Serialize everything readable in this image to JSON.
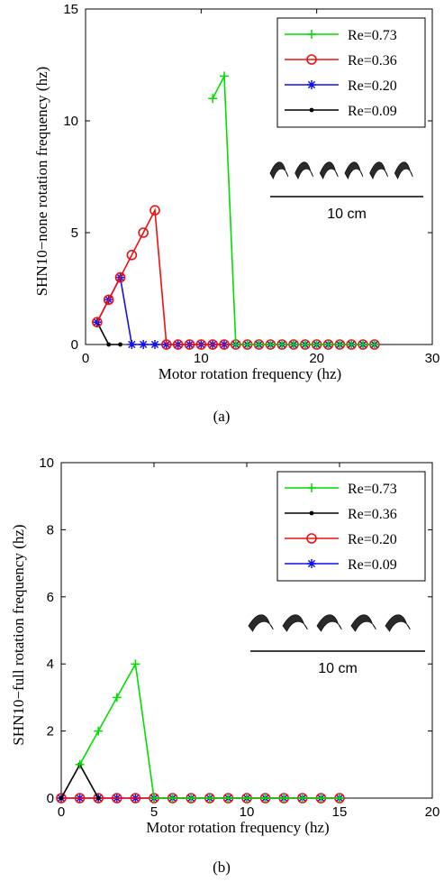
{
  "chart_data": [
    {
      "type": "line",
      "caption": "(a)",
      "xlabel": "Motor rotation frequency (hz)",
      "ylabel": "SHN10−none rotation frequency (hz)",
      "xlim": [
        0,
        30
      ],
      "ylim": [
        0,
        15
      ],
      "xticks": [
        0,
        10,
        20,
        30
      ],
      "yticks": [
        0,
        5,
        10,
        15
      ],
      "legend_position": "top-right",
      "inset_scale_label": "10 cm",
      "series": [
        {
          "name": "Re=0.73",
          "color": "#00dd00",
          "marker": "plus",
          "points": [
            [
              11,
              11
            ],
            [
              12,
              12
            ],
            [
              13,
              0
            ],
            [
              14,
              0
            ],
            [
              15,
              0
            ],
            [
              16,
              0
            ],
            [
              17,
              0
            ],
            [
              18,
              0
            ],
            [
              19,
              0
            ],
            [
              20,
              0
            ],
            [
              21,
              0
            ],
            [
              22,
              0
            ],
            [
              23,
              0
            ],
            [
              24,
              0
            ],
            [
              25,
              0
            ]
          ]
        },
        {
          "name": "Re=0.36",
          "color": "#ee1111",
          "marker": "circle",
          "points": [
            [
              1,
              1
            ],
            [
              2,
              2
            ],
            [
              3,
              3
            ],
            [
              4,
              4
            ],
            [
              5,
              5
            ],
            [
              6,
              6
            ],
            [
              7,
              0
            ],
            [
              8,
              0
            ],
            [
              9,
              0
            ],
            [
              10,
              0
            ],
            [
              11,
              0
            ],
            [
              12,
              0
            ],
            [
              13,
              0
            ],
            [
              14,
              0
            ],
            [
              15,
              0
            ],
            [
              16,
              0
            ],
            [
              17,
              0
            ],
            [
              18,
              0
            ],
            [
              19,
              0
            ],
            [
              20,
              0
            ],
            [
              21,
              0
            ],
            [
              22,
              0
            ],
            [
              23,
              0
            ],
            [
              24,
              0
            ],
            [
              25,
              0
            ]
          ]
        },
        {
          "name": "Re=0.20",
          "color": "#1111ee",
          "marker": "asterisk",
          "points": [
            [
              1,
              1
            ],
            [
              2,
              2
            ],
            [
              3,
              3
            ],
            [
              4,
              0
            ],
            [
              5,
              0
            ],
            [
              6,
              0
            ],
            [
              7,
              0
            ],
            [
              8,
              0
            ],
            [
              9,
              0
            ],
            [
              10,
              0
            ],
            [
              11,
              0
            ],
            [
              12,
              0
            ],
            [
              13,
              0
            ],
            [
              14,
              0
            ],
            [
              15,
              0
            ],
            [
              16,
              0
            ],
            [
              17,
              0
            ],
            [
              18,
              0
            ],
            [
              19,
              0
            ],
            [
              20,
              0
            ],
            [
              21,
              0
            ],
            [
              22,
              0
            ],
            [
              23,
              0
            ],
            [
              24,
              0
            ],
            [
              25,
              0
            ]
          ]
        },
        {
          "name": "Re=0.09",
          "color": "#000000",
          "marker": "dot",
          "points": [
            [
              1,
              1
            ],
            [
              2,
              0
            ],
            [
              3,
              0
            ]
          ]
        }
      ]
    },
    {
      "type": "line",
      "caption": "(b)",
      "xlabel": "Motor rotation frequency (hz)",
      "ylabel": "SHN10−full rotation frequency (hz)",
      "xlim": [
        0,
        20
      ],
      "ylim": [
        0,
        10
      ],
      "xticks": [
        0,
        5,
        10,
        15,
        20
      ],
      "yticks": [
        0,
        2,
        4,
        6,
        8,
        10
      ],
      "legend_position": "top-right",
      "inset_scale_label": "10 cm",
      "series": [
        {
          "name": "Re=0.73",
          "color": "#00dd00",
          "marker": "plus",
          "points": [
            [
              1,
              1
            ],
            [
              2,
              2
            ],
            [
              3,
              3
            ],
            [
              4,
              4
            ],
            [
              5,
              0
            ],
            [
              6,
              0
            ],
            [
              7,
              0
            ],
            [
              8,
              0
            ],
            [
              9,
              0
            ],
            [
              10,
              0
            ],
            [
              11,
              0
            ],
            [
              12,
              0
            ],
            [
              13,
              0
            ],
            [
              14,
              0
            ],
            [
              15,
              0
            ]
          ]
        },
        {
          "name": "Re=0.36",
          "color": "#000000",
          "marker": "dot",
          "points": [
            [
              0,
              0
            ],
            [
              1,
              1
            ],
            [
              2,
              0
            ]
          ]
        },
        {
          "name": "Re=0.20",
          "color": "#ee1111",
          "marker": "circle",
          "points": [
            [
              0,
              0
            ],
            [
              1,
              0
            ],
            [
              2,
              0
            ],
            [
              3,
              0
            ],
            [
              4,
              0
            ],
            [
              5,
              0
            ],
            [
              6,
              0
            ],
            [
              7,
              0
            ],
            [
              8,
              0
            ],
            [
              9,
              0
            ],
            [
              10,
              0
            ],
            [
              11,
              0
            ],
            [
              12,
              0
            ],
            [
              13,
              0
            ],
            [
              14,
              0
            ],
            [
              15,
              0
            ]
          ]
        },
        {
          "name": "Re=0.09",
          "color": "#1111ee",
          "marker": "asterisk",
          "points": [
            [
              0,
              0
            ],
            [
              1,
              0
            ],
            [
              2,
              0
            ],
            [
              3,
              0
            ],
            [
              4,
              0
            ],
            [
              5,
              0
            ],
            [
              6,
              0
            ],
            [
              7,
              0
            ],
            [
              8,
              0
            ],
            [
              9,
              0
            ],
            [
              10,
              0
            ],
            [
              11,
              0
            ],
            [
              12,
              0
            ],
            [
              13,
              0
            ],
            [
              14,
              0
            ],
            [
              15,
              0
            ]
          ]
        }
      ]
    }
  ]
}
